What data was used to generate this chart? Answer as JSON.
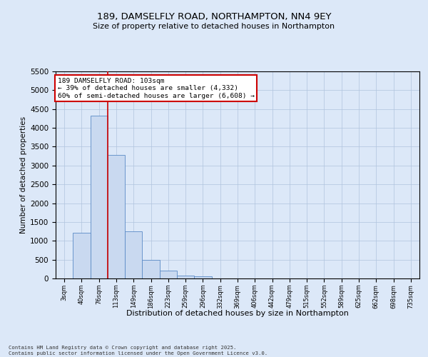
{
  "title": "189, DAMSELFLY ROAD, NORTHAMPTON, NN4 9EY",
  "subtitle": "Size of property relative to detached houses in Northampton",
  "xlabel": "Distribution of detached houses by size in Northampton",
  "ylabel": "Number of detached properties",
  "bar_color": "#c9d9f0",
  "bar_edge_color": "#5a8ac6",
  "categories": [
    "3sqm",
    "40sqm",
    "76sqm",
    "113sqm",
    "149sqm",
    "186sqm",
    "223sqm",
    "259sqm",
    "296sqm",
    "332sqm",
    "369sqm",
    "406sqm",
    "442sqm",
    "479sqm",
    "515sqm",
    "552sqm",
    "589sqm",
    "625sqm",
    "662sqm",
    "698sqm",
    "735sqm"
  ],
  "values": [
    0,
    1220,
    4330,
    3280,
    1250,
    500,
    200,
    80,
    50,
    0,
    0,
    0,
    0,
    0,
    0,
    0,
    0,
    0,
    0,
    0,
    0
  ],
  "ylim": [
    0,
    5500
  ],
  "yticks": [
    0,
    500,
    1000,
    1500,
    2000,
    2500,
    3000,
    3500,
    4000,
    4500,
    5000,
    5500
  ],
  "vline_x": 2.5,
  "annotation_title": "189 DAMSELFLY ROAD: 103sqm",
  "annotation_line1": "← 39% of detached houses are smaller (4,332)",
  "annotation_line2": "60% of semi-detached houses are larger (6,608) →",
  "annotation_box_color": "#ffffff",
  "annotation_box_edge": "#cc0000",
  "vline_color": "#cc0000",
  "footer1": "Contains HM Land Registry data © Crown copyright and database right 2025.",
  "footer2": "Contains public sector information licensed under the Open Government Licence v3.0.",
  "bg_color": "#dce8f8",
  "plot_bg_color": "#dce8f8",
  "grid_color": "#b0c4de"
}
